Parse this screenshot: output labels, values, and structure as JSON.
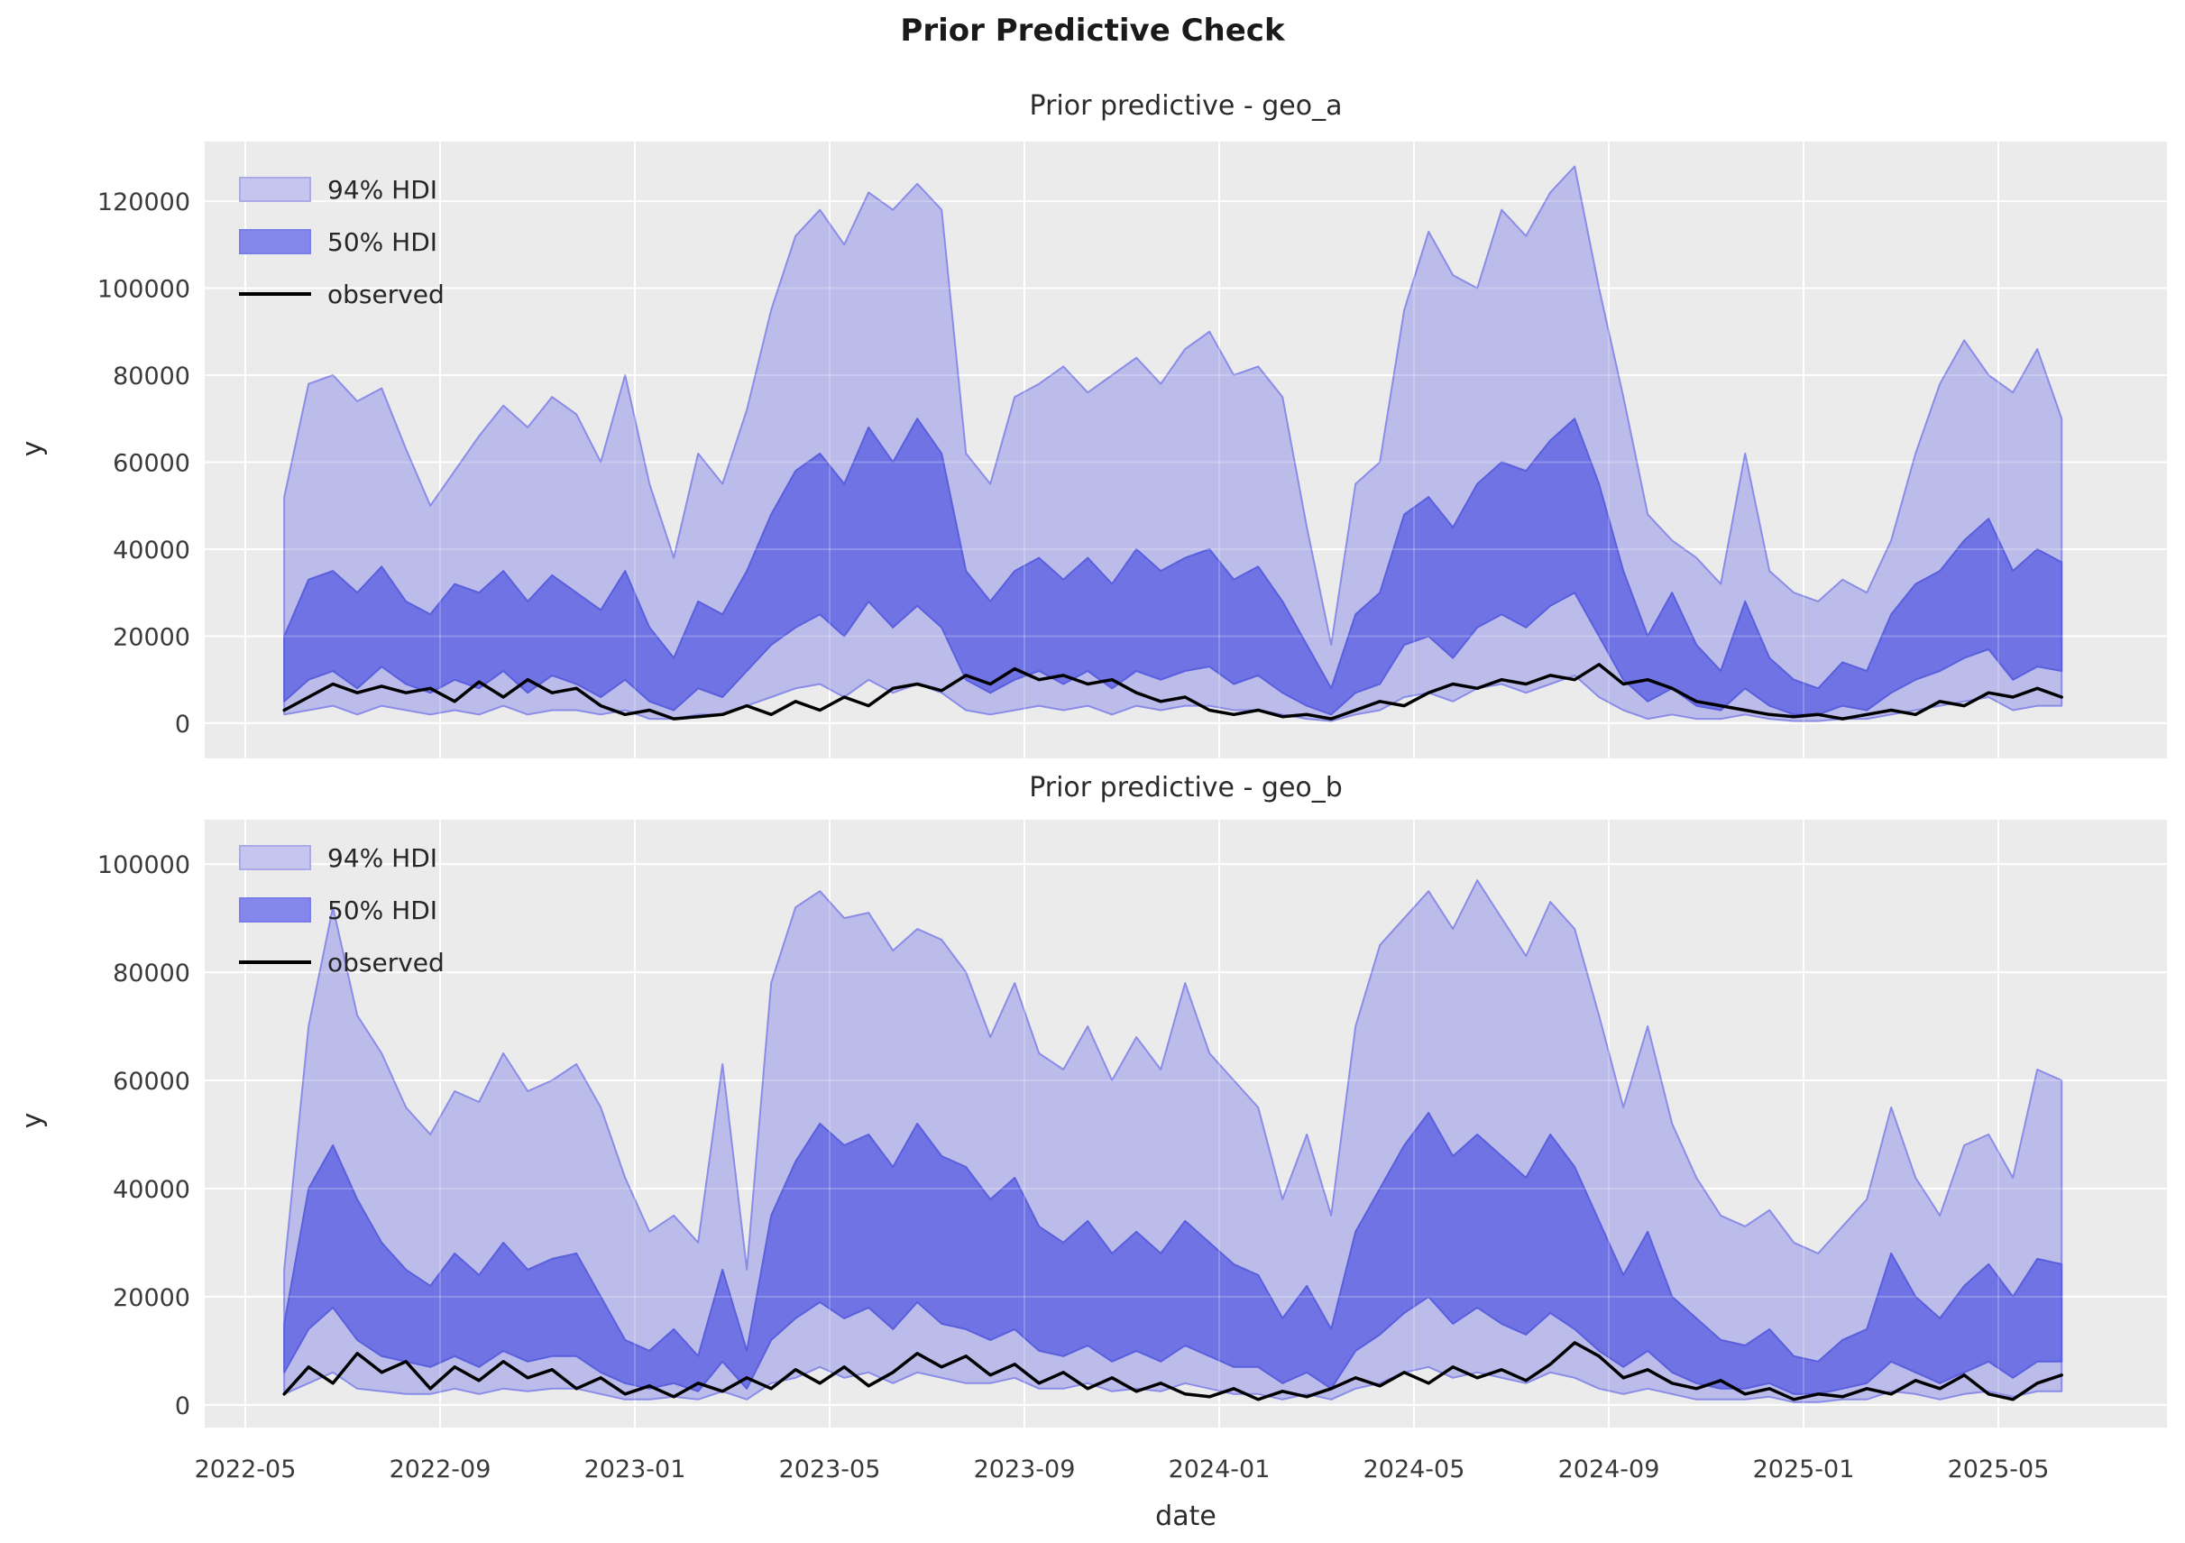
{
  "chart_data": {
    "type": "area",
    "title": "Prior Predictive Check",
    "xlabel": "date",
    "x_axis": {
      "tick_values_months_after_2022_05": [
        0,
        4,
        8,
        12,
        16,
        20,
        24,
        28,
        32,
        36
      ],
      "tick_labels": [
        "2022-05",
        "2022-09",
        "2023-01",
        "2023-05",
        "2023-09",
        "2024-01",
        "2024-05",
        "2024-09",
        "2025-01",
        "2025-05"
      ],
      "xlim_months": [
        -0.83,
        39.46
      ],
      "series_start_month": 0.8,
      "series_step_month": 0.5,
      "grid": true
    },
    "colors": {
      "axes_background": "#ebebeb",
      "grid": "#ffffff",
      "hdi94_fill": "#bbbce9",
      "hdi94_edge": "#8a8ce8",
      "hdi50_fill": "#6f73e4",
      "hdi50_edge": "#5a5fdd",
      "observed": "#000000",
      "legend94_fill": "#c5c5f0",
      "legend94_edge": "#a9aae6",
      "legend50_fill": "#8487ec",
      "legend50_edge": "#7b7de8"
    },
    "panels": [
      {
        "id": "geo_a",
        "title": "Prior predictive - geo_a",
        "ylabel": "y",
        "legend": [
          "94% HDI",
          "50% HDI",
          "observed"
        ],
        "legend_position": "upper left",
        "ylim": [
          -8100,
          133700
        ],
        "ytick_values": [
          0,
          20000,
          40000,
          60000,
          80000,
          100000,
          120000
        ],
        "ytick_labels": [
          "0",
          "20000",
          "40000",
          "60000",
          "80000",
          "100000",
          "120000"
        ],
        "series": {
          "hdi94_upper": [
            52000,
            78000,
            80000,
            74000,
            77000,
            63000,
            50000,
            58000,
            66000,
            73000,
            68000,
            75000,
            71000,
            60000,
            80000,
            55000,
            38000,
            62000,
            55000,
            72000,
            95000,
            112000,
            118000,
            110000,
            122000,
            118000,
            124000,
            118000,
            62000,
            55000,
            75000,
            78000,
            82000,
            76000,
            80000,
            84000,
            78000,
            86000,
            90000,
            80000,
            82000,
            75000,
            45000,
            18000,
            55000,
            60000,
            95000,
            113000,
            103000,
            100000,
            118000,
            112000,
            122000,
            128000,
            100000,
            75000,
            48000,
            42000,
            38000,
            32000,
            62000,
            35000,
            30000,
            28000,
            33000,
            30000,
            42000,
            62000,
            78000,
            88000,
            80000,
            76000,
            86000,
            70000
          ],
          "hdi50_upper": [
            20000,
            33000,
            35000,
            30000,
            36000,
            28000,
            25000,
            32000,
            30000,
            35000,
            28000,
            34000,
            30000,
            26000,
            35000,
            22000,
            15000,
            28000,
            25000,
            35000,
            48000,
            58000,
            62000,
            55000,
            68000,
            60000,
            70000,
            62000,
            35000,
            28000,
            35000,
            38000,
            33000,
            38000,
            32000,
            40000,
            35000,
            38000,
            40000,
            33000,
            36000,
            28000,
            18000,
            8000,
            25000,
            30000,
            48000,
            52000,
            45000,
            55000,
            60000,
            58000,
            65000,
            70000,
            55000,
            35000,
            20000,
            30000,
            18000,
            12000,
            28000,
            15000,
            10000,
            8000,
            14000,
            12000,
            25000,
            32000,
            35000,
            42000,
            47000,
            35000,
            40000,
            37000
          ],
          "hdi50_lower": [
            5000,
            10000,
            12000,
            8000,
            13000,
            9000,
            7000,
            10000,
            8000,
            12000,
            7000,
            11000,
            9000,
            6000,
            10000,
            5000,
            3000,
            8000,
            6000,
            12000,
            18000,
            22000,
            25000,
            20000,
            28000,
            22000,
            27000,
            22000,
            10000,
            7000,
            10000,
            12000,
            9000,
            12000,
            8000,
            12000,
            10000,
            12000,
            13000,
            9000,
            11000,
            7000,
            4000,
            2000,
            7000,
            9000,
            18000,
            20000,
            15000,
            22000,
            25000,
            22000,
            27000,
            30000,
            20000,
            10000,
            5000,
            8000,
            4000,
            3000,
            8000,
            4000,
            2000,
            2000,
            4000,
            3000,
            7000,
            10000,
            12000,
            15000,
            17000,
            10000,
            13000,
            12000
          ],
          "hdi94_lower": [
            2000,
            3000,
            4000,
            2000,
            4000,
            3000,
            2000,
            3000,
            2000,
            4000,
            2000,
            3000,
            3000,
            2000,
            3000,
            1000,
            1000,
            2000,
            2000,
            4000,
            6000,
            8000,
            9000,
            6000,
            10000,
            7000,
            9000,
            7000,
            3000,
            2000,
            3000,
            4000,
            3000,
            4000,
            2000,
            4000,
            3000,
            4000,
            4000,
            3000,
            3000,
            2000,
            1000,
            500,
            2000,
            3000,
            6000,
            7000,
            5000,
            8000,
            9000,
            7000,
            9000,
            11000,
            6000,
            3000,
            1000,
            2000,
            1000,
            1000,
            2000,
            1000,
            500,
            500,
            1000,
            1000,
            2000,
            3000,
            4000,
            5000,
            6000,
            3000,
            4000,
            4000
          ],
          "observed": [
            3000,
            6000,
            9000,
            7000,
            8500,
            7000,
            8000,
            5000,
            9500,
            6000,
            10000,
            7000,
            8000,
            4000,
            2000,
            3000,
            1000,
            1500,
            2000,
            4000,
            2000,
            5000,
            3000,
            6000,
            4000,
            8000,
            9000,
            7500,
            11000,
            9000,
            12500,
            10000,
            11000,
            9000,
            10000,
            7000,
            5000,
            6000,
            3000,
            2000,
            3000,
            1500,
            2000,
            1000,
            3000,
            5000,
            4000,
            7000,
            9000,
            8000,
            10000,
            9000,
            11000,
            10000,
            13500,
            9000,
            10000,
            8000,
            5000,
            4000,
            3000,
            2000,
            1500,
            2000,
            1000,
            2000,
            3000,
            2000,
            5000,
            4000,
            7000,
            6000,
            8000,
            6000
          ]
        }
      },
      {
        "id": "geo_b",
        "title": "Prior predictive - geo_b",
        "ylabel": "y",
        "legend": [
          "94% HDI",
          "50% HDI",
          "observed"
        ],
        "legend_position": "upper left",
        "ylim": [
          -4200,
          108200
        ],
        "ytick_values": [
          0,
          20000,
          40000,
          60000,
          80000,
          100000
        ],
        "ytick_labels": [
          "0",
          "20000",
          "40000",
          "60000",
          "80000",
          "100000"
        ],
        "series": {
          "hdi94_upper": [
            25000,
            70000,
            92000,
            72000,
            65000,
            55000,
            50000,
            58000,
            56000,
            65000,
            58000,
            60000,
            63000,
            55000,
            42000,
            32000,
            35000,
            30000,
            63000,
            25000,
            78000,
            92000,
            95000,
            90000,
            91000,
            84000,
            88000,
            86000,
            80000,
            68000,
            78000,
            65000,
            62000,
            70000,
            60000,
            68000,
            62000,
            78000,
            65000,
            60000,
            55000,
            38000,
            50000,
            35000,
            70000,
            85000,
            90000,
            95000,
            88000,
            97000,
            90000,
            83000,
            93000,
            88000,
            72000,
            55000,
            70000,
            52000,
            42000,
            35000,
            33000,
            36000,
            30000,
            28000,
            33000,
            38000,
            55000,
            42000,
            35000,
            48000,
            50000,
            42000,
            62000,
            60000
          ],
          "hdi50_upper": [
            15000,
            40000,
            48000,
            38000,
            30000,
            25000,
            22000,
            28000,
            24000,
            30000,
            25000,
            27000,
            28000,
            20000,
            12000,
            10000,
            14000,
            9000,
            25000,
            10000,
            35000,
            45000,
            52000,
            48000,
            50000,
            44000,
            52000,
            46000,
            44000,
            38000,
            42000,
            33000,
            30000,
            34000,
            28000,
            32000,
            28000,
            34000,
            30000,
            26000,
            24000,
            16000,
            22000,
            14000,
            32000,
            40000,
            48000,
            54000,
            46000,
            50000,
            46000,
            42000,
            50000,
            44000,
            34000,
            24000,
            32000,
            20000,
            16000,
            12000,
            11000,
            14000,
            9000,
            8000,
            12000,
            14000,
            28000,
            20000,
            16000,
            22000,
            26000,
            20000,
            27000,
            26000
          ],
          "hdi50_lower": [
            6000,
            14000,
            18000,
            12000,
            9000,
            8000,
            7000,
            9000,
            7000,
            10000,
            8000,
            9000,
            9000,
            6000,
            4000,
            3000,
            4000,
            2500,
            8000,
            3000,
            12000,
            16000,
            19000,
            16000,
            18000,
            14000,
            19000,
            15000,
            14000,
            12000,
            14000,
            10000,
            9000,
            11000,
            8000,
            10000,
            8000,
            11000,
            9000,
            7000,
            7000,
            4000,
            6000,
            3000,
            10000,
            13000,
            17000,
            20000,
            15000,
            18000,
            15000,
            13000,
            17000,
            14000,
            10000,
            7000,
            10000,
            6000,
            4000,
            3000,
            3000,
            4000,
            2000,
            2000,
            3000,
            4000,
            8000,
            6000,
            4000,
            6000,
            8000,
            5000,
            8000,
            8000
          ],
          "hdi94_lower": [
            2000,
            4000,
            6000,
            3000,
            2500,
            2000,
            2000,
            3000,
            2000,
            3000,
            2500,
            3000,
            3000,
            2000,
            1000,
            1000,
            1500,
            1000,
            2500,
            1000,
            4000,
            5000,
            7000,
            5000,
            6000,
            4000,
            6000,
            5000,
            4000,
            4000,
            5000,
            3000,
            3000,
            4000,
            2500,
            3000,
            2500,
            4000,
            3000,
            2000,
            2000,
            1000,
            2000,
            1000,
            3000,
            4000,
            6000,
            7000,
            5000,
            6000,
            5000,
            4000,
            6000,
            5000,
            3000,
            2000,
            3000,
            2000,
            1000,
            1000,
            1000,
            1500,
            500,
            500,
            1000,
            1000,
            2500,
            2000,
            1000,
            2000,
            2500,
            1500,
            2500,
            2500
          ],
          "observed": [
            2000,
            7000,
            4000,
            9500,
            6000,
            8000,
            3000,
            7000,
            4500,
            8000,
            5000,
            6500,
            3000,
            5000,
            2000,
            3500,
            1500,
            4000,
            2500,
            5000,
            3000,
            6500,
            4000,
            7000,
            3500,
            6000,
            9500,
            7000,
            9000,
            5500,
            7500,
            4000,
            6000,
            3000,
            5000,
            2500,
            4000,
            2000,
            1500,
            3000,
            1000,
            2500,
            1500,
            3000,
            5000,
            3500,
            6000,
            4000,
            7000,
            5000,
            6500,
            4500,
            7500,
            11500,
            9000,
            5000,
            6500,
            4000,
            3000,
            4500,
            2000,
            3000,
            1000,
            2000,
            1500,
            3000,
            2000,
            4500,
            3000,
            5500,
            2000,
            1000,
            4000,
            5500
          ]
        }
      }
    ]
  }
}
